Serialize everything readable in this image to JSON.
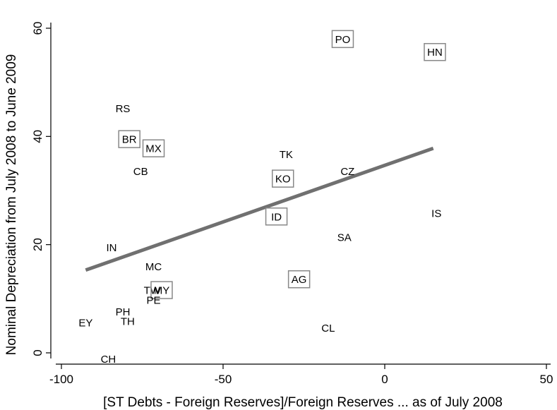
{
  "chart_data": {
    "type": "scatter",
    "xlabel": "[ST Debts - Foreign Reserves]/Foreign Reserves ... as of July 2008",
    "ylabel": "Nominal Depreciation from July 2008 to June 2009",
    "xlim": [
      -100,
      50
    ],
    "ylim": [
      0,
      60
    ],
    "x_ticks": [
      -100,
      -50,
      0,
      50
    ],
    "y_ticks": [
      0,
      20,
      40,
      60
    ],
    "x_tick_labels": [
      "-100",
      "-50",
      "0",
      "50"
    ],
    "y_tick_labels": [
      "0",
      "20",
      "40",
      "60"
    ],
    "grid": false,
    "points": [
      {
        "label": "PO",
        "x": -13,
        "y": 58,
        "boxed": true
      },
      {
        "label": "HN",
        "x": 15.5,
        "y": 55.6,
        "boxed": true
      },
      {
        "label": "RS",
        "x": -81,
        "y": 45.2,
        "boxed": false
      },
      {
        "label": "BR",
        "x": -79,
        "y": 39.5,
        "boxed": true
      },
      {
        "label": "MX",
        "x": -71.5,
        "y": 37.8,
        "boxed": true
      },
      {
        "label": "TK",
        "x": -30.5,
        "y": 36.7,
        "boxed": false
      },
      {
        "label": "CB",
        "x": -75.5,
        "y": 33.6,
        "boxed": false
      },
      {
        "label": "CZ",
        "x": -11.5,
        "y": 33.6,
        "boxed": false
      },
      {
        "label": "KO",
        "x": -31.5,
        "y": 32.2,
        "boxed": true
      },
      {
        "label": "IS",
        "x": 16,
        "y": 25.8,
        "boxed": false
      },
      {
        "label": "ID",
        "x": -33.5,
        "y": 25.2,
        "boxed": true
      },
      {
        "label": "SA",
        "x": -12.5,
        "y": 21.4,
        "boxed": false
      },
      {
        "label": "IN",
        "x": -84.5,
        "y": 19.5,
        "boxed": false
      },
      {
        "label": "MC",
        "x": -71.5,
        "y": 16,
        "boxed": false
      },
      {
        "label": "AG",
        "x": -26.5,
        "y": 13.6,
        "boxed": true
      },
      {
        "label": "TW",
        "x": -72,
        "y": 11.6,
        "boxed": false
      },
      {
        "label": "MY",
        "x": -69,
        "y": 11.6,
        "boxed": true
      },
      {
        "label": "PE",
        "x": -71.5,
        "y": 9.8,
        "boxed": false
      },
      {
        "label": "PH",
        "x": -81,
        "y": 7.6,
        "boxed": false
      },
      {
        "label": "TH",
        "x": -79.5,
        "y": 5.9,
        "boxed": false
      },
      {
        "label": "EY",
        "x": -92.5,
        "y": 5.6,
        "boxed": false
      },
      {
        "label": "CL",
        "x": -17.5,
        "y": 4.6,
        "boxed": false
      },
      {
        "label": "CH",
        "x": -85.5,
        "y": -1.1,
        "boxed": false
      }
    ],
    "fit_line": {
      "x": [
        -92.5,
        15
      ],
      "y": [
        15.3,
        37.8
      ],
      "color": "#707070"
    }
  }
}
